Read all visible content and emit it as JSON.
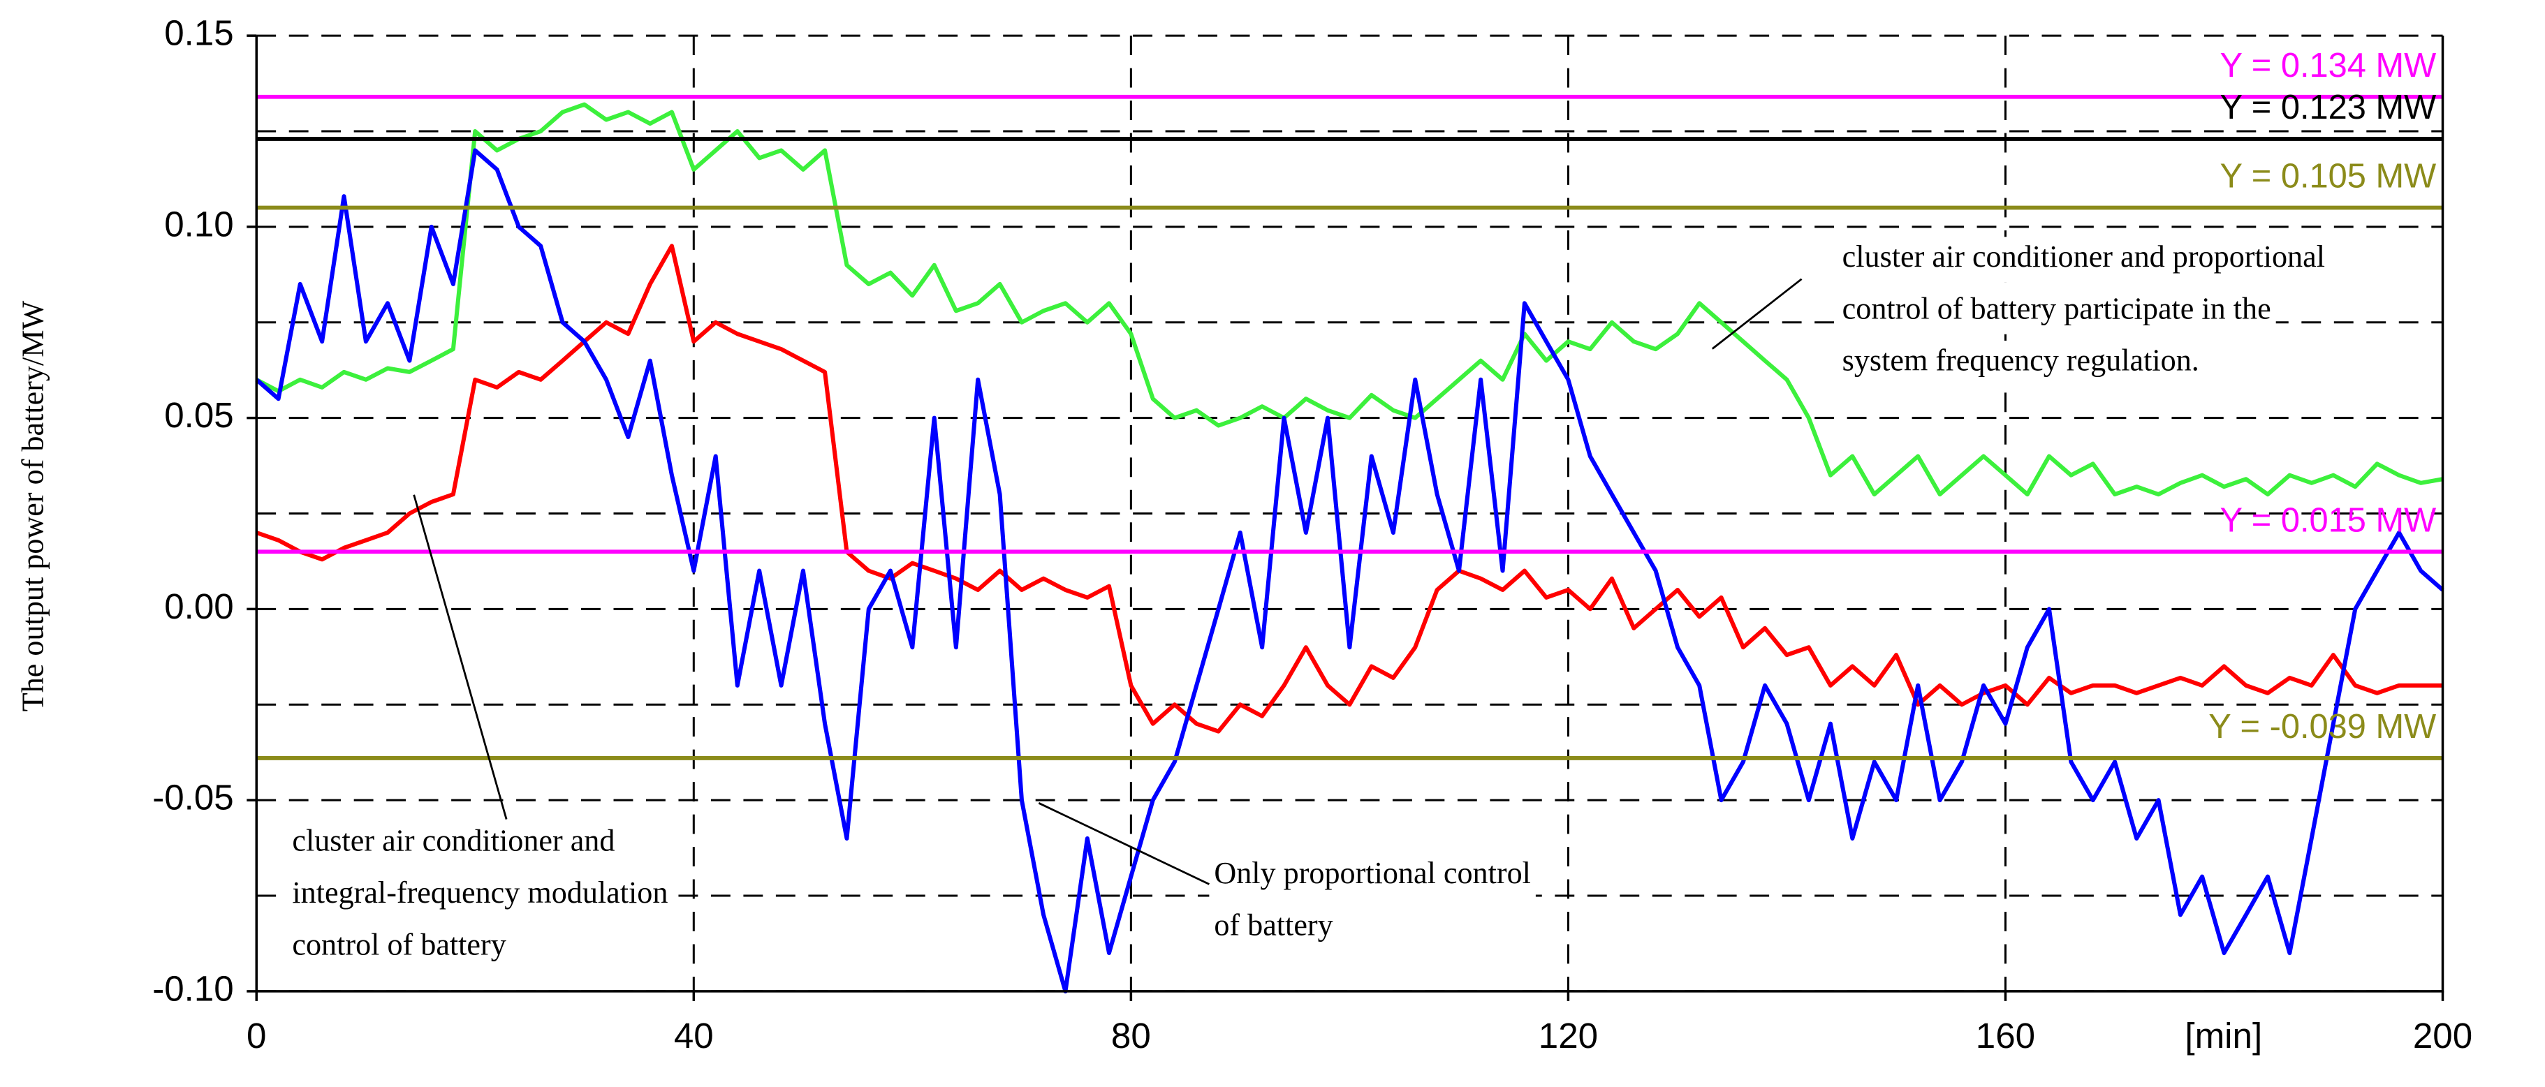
{
  "chart_data": {
    "type": "line",
    "ylabel": "The output power of battery/MW",
    "xlabel": "[min]",
    "xlim": [
      0,
      200
    ],
    "xticks": [
      0,
      40,
      80,
      120,
      160,
      200
    ],
    "ylim": [
      -0.1,
      0.15
    ],
    "yticks": [
      {
        "value": -0.1,
        "label": "-0.10"
      },
      -0.05,
      {
        "value": 0,
        "label": "0.00"
      },
      0.05,
      {
        "value": 0.1,
        "label": "0.10"
      },
      0.15
    ],
    "ygrid_minor": [
      -0.075,
      -0.025,
      0.025,
      0.075,
      0.125
    ],
    "grid": true,
    "x": [
      0,
      2,
      4,
      6,
      8,
      10,
      12,
      14,
      16,
      18,
      20,
      22,
      24,
      26,
      28,
      30,
      32,
      34,
      36,
      38,
      40,
      42,
      44,
      46,
      48,
      50,
      52,
      54,
      56,
      58,
      60,
      62,
      64,
      66,
      68,
      70,
      72,
      74,
      76,
      78,
      80,
      82,
      84,
      86,
      88,
      90,
      92,
      94,
      96,
      98,
      100,
      102,
      104,
      106,
      108,
      110,
      112,
      114,
      116,
      118,
      120,
      122,
      124,
      126,
      128,
      130,
      132,
      134,
      136,
      138,
      140,
      142,
      144,
      146,
      148,
      150,
      152,
      154,
      156,
      158,
      160,
      162,
      164,
      166,
      168,
      170,
      172,
      174,
      176,
      178,
      180,
      182,
      184,
      186,
      188,
      190,
      192,
      194,
      196,
      198,
      200
    ],
    "series": [
      {
        "color": "#3cf03c",
        "values": [
          0.06,
          0.057,
          0.06,
          0.058,
          0.062,
          0.06,
          0.063,
          0.062,
          0.065,
          0.068,
          0.125,
          0.12,
          0.123,
          0.125,
          0.13,
          0.132,
          0.128,
          0.13,
          0.127,
          0.13,
          0.115,
          0.12,
          0.125,
          0.118,
          0.12,
          0.115,
          0.12,
          0.09,
          0.085,
          0.088,
          0.082,
          0.09,
          0.078,
          0.08,
          0.085,
          0.075,
          0.078,
          0.08,
          0.075,
          0.08,
          0.072,
          0.055,
          0.05,
          0.052,
          0.048,
          0.05,
          0.053,
          0.05,
          0.055,
          0.052,
          0.05,
          0.056,
          0.052,
          0.05,
          0.055,
          0.06,
          0.065,
          0.06,
          0.072,
          0.065,
          0.07,
          0.068,
          0.075,
          0.07,
          0.068,
          0.072,
          0.08,
          0.075,
          0.07,
          0.065,
          0.06,
          0.05,
          0.035,
          0.04,
          0.03,
          0.035,
          0.04,
          0.03,
          0.035,
          0.04,
          0.035,
          0.03,
          0.04,
          0.035,
          0.038,
          0.03,
          0.032,
          0.03,
          0.033,
          0.035,
          0.032,
          0.034,
          0.03,
          0.035,
          0.033,
          0.035,
          0.032,
          0.038,
          0.035,
          0.033,
          0.034
        ]
      },
      {
        "color": "#ff0000",
        "values": [
          0.02,
          0.018,
          0.015,
          0.013,
          0.016,
          0.018,
          0.02,
          0.025,
          0.028,
          0.03,
          0.06,
          0.058,
          0.062,
          0.06,
          0.065,
          0.07,
          0.075,
          0.072,
          0.085,
          0.095,
          0.07,
          0.075,
          0.072,
          0.07,
          0.068,
          0.065,
          0.062,
          0.015,
          0.01,
          0.008,
          0.012,
          0.01,
          0.008,
          0.005,
          0.01,
          0.005,
          0.008,
          0.005,
          0.003,
          0.006,
          -0.02,
          -0.03,
          -0.025,
          -0.03,
          -0.032,
          -0.025,
          -0.028,
          -0.02,
          -0.01,
          -0.02,
          -0.025,
          -0.015,
          -0.018,
          -0.01,
          0.005,
          0.01,
          0.008,
          0.005,
          0.01,
          0.003,
          0.005,
          0,
          0.008,
          -0.005,
          0,
          0.005,
          -0.002,
          0.003,
          -0.01,
          -0.005,
          -0.012,
          -0.01,
          -0.02,
          -0.015,
          -0.02,
          -0.012,
          -0.025,
          -0.02,
          -0.025,
          -0.022,
          -0.02,
          -0.025,
          -0.018,
          -0.022,
          -0.02,
          -0.02,
          -0.022,
          -0.02,
          -0.018,
          -0.02,
          -0.015,
          -0.02,
          -0.022,
          -0.018,
          -0.02,
          -0.012,
          -0.02,
          -0.022,
          -0.02,
          -0.02,
          -0.02
        ]
      },
      {
        "color": "#0000ff",
        "values": [
          0.06,
          0.055,
          0.085,
          0.07,
          0.108,
          0.07,
          0.08,
          0.065,
          0.1,
          0.085,
          0.12,
          0.115,
          0.1,
          0.095,
          0.075,
          0.07,
          0.06,
          0.045,
          0.065,
          0.035,
          0.01,
          0.04,
          -0.02,
          0.01,
          -0.02,
          0.01,
          -0.03,
          -0.06,
          0,
          0.01,
          -0.01,
          0.05,
          -0.01,
          0.06,
          0.03,
          -0.05,
          -0.08,
          -0.1,
          -0.06,
          -0.09,
          -0.07,
          -0.05,
          -0.04,
          -0.02,
          0,
          0.02,
          -0.01,
          0.05,
          0.02,
          0.05,
          -0.01,
          0.04,
          0.02,
          0.06,
          0.03,
          0.01,
          0.06,
          0.01,
          0.08,
          0.07,
          0.06,
          0.04,
          0.03,
          0.02,
          0.01,
          -0.01,
          -0.02,
          -0.05,
          -0.04,
          -0.02,
          -0.03,
          -0.05,
          -0.03,
          -0.06,
          -0.04,
          -0.05,
          -0.02,
          -0.05,
          -0.04,
          -0.02,
          -0.03,
          -0.01,
          0,
          -0.04,
          -0.05,
          -0.04,
          -0.06,
          -0.05,
          -0.08,
          -0.07,
          -0.09,
          -0.08,
          -0.07,
          -0.09,
          -0.06,
          -0.03,
          0,
          0.01,
          0.02,
          0.01,
          0.005
        ]
      }
    ],
    "reference_lines": [
      {
        "value": 0.134,
        "label": "Y =  0.134 MW",
        "color": "#ff00ff"
      },
      {
        "value": 0.123,
        "label": "Y =  0.123 MW",
        "color": "#000000"
      },
      {
        "value": 0.105,
        "label": "Y =  0.105 MW",
        "color": "#8b8b1a"
      },
      {
        "value": 0.015,
        "label": "Y =  0.015 MW",
        "color": "#ff00ff"
      },
      {
        "value": -0.039,
        "label": "Y = -0.039 MW",
        "color": "#8b8b1a"
      }
    ],
    "annotations": [
      {
        "lines": [
          "cluster air conditioner and proportional",
          "control of battery participate in the",
          "system frequency regulation."
        ]
      },
      {
        "lines": [
          "cluster air conditioner and",
          "integral-frequency modulation",
          "control of battery"
        ]
      },
      {
        "lines": [
          "Only proportional control",
          "of battery"
        ]
      }
    ]
  }
}
